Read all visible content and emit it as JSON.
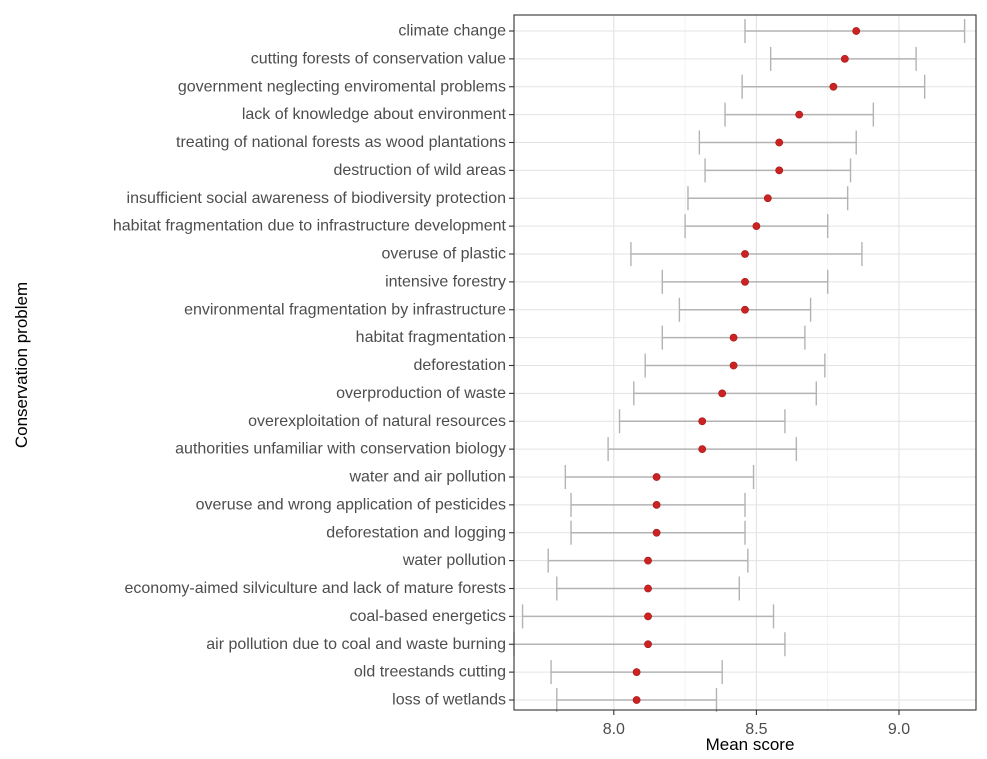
{
  "chart_data": {
    "type": "scatter",
    "subtype": "dot-with-error-bars",
    "title": "",
    "xlabel": "Mean score",
    "ylabel": "Conservation problem",
    "xlim": [
      7.65,
      9.27
    ],
    "xticks": [
      8.0,
      8.5,
      9.0
    ],
    "xtick_labels": [
      "8.0",
      "8.5",
      "9.0"
    ],
    "grid": true,
    "legend": "none",
    "point_color": "#cc2222",
    "errorbar_color": "#b3b3b3",
    "categories": [
      "climate change",
      "cutting forests of conservation value",
      "government neglecting enviromental problems",
      "lack of knowledge about environment",
      "treating of national forests as wood plantations",
      "destruction of wild areas",
      "insufficient social awareness of biodiversity protection",
      "habitat fragmentation due to infrastructure development",
      "overuse of plastic",
      "intensive forestry",
      "environmental fragmentation by infrastructure",
      "habitat fragmentation",
      "deforestation",
      "overproduction of waste",
      "overexploitation of natural resources",
      "authorities unfamiliar with conservation biology",
      "water and air pollution",
      "overuse and wrong application of pesticides",
      "deforestation and logging",
      "water pollution",
      "economy-aimed silviculture and lack of mature forests",
      "coal-based energetics",
      "air pollution due to coal and waste burning",
      "old treestands cutting",
      "loss of wetlands"
    ],
    "mean": [
      8.85,
      8.81,
      8.77,
      8.65,
      8.58,
      8.58,
      8.54,
      8.5,
      8.46,
      8.46,
      8.46,
      8.42,
      8.42,
      8.38,
      8.31,
      8.31,
      8.15,
      8.15,
      8.15,
      8.12,
      8.12,
      8.12,
      8.12,
      8.08,
      8.08
    ],
    "lower": [
      8.46,
      8.55,
      8.45,
      8.39,
      8.3,
      8.32,
      8.26,
      8.25,
      8.06,
      8.17,
      8.23,
      8.17,
      8.11,
      8.07,
      8.02,
      7.98,
      7.83,
      7.85,
      7.85,
      7.77,
      7.8,
      7.68,
      7.65,
      7.78,
      7.8
    ],
    "upper": [
      9.23,
      9.06,
      9.09,
      8.91,
      8.85,
      8.83,
      8.82,
      8.75,
      8.87,
      8.75,
      8.69,
      8.67,
      8.74,
      8.71,
      8.6,
      8.64,
      8.49,
      8.46,
      8.46,
      8.47,
      8.44,
      8.56,
      8.6,
      8.38,
      8.36
    ]
  }
}
